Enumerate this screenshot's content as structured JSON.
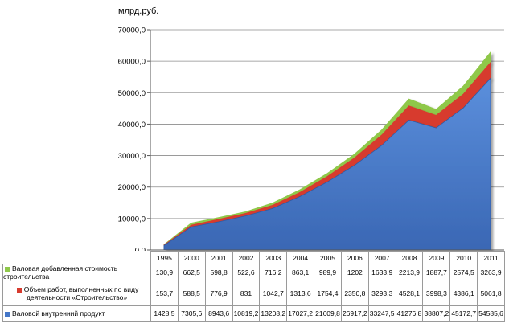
{
  "chart_data": {
    "type": "area",
    "stacked": true,
    "ylabel": "млрд.руб.",
    "ylim": [
      0,
      70000
    ],
    "yticks": [
      "0,0",
      "10000,0",
      "20000,0",
      "30000,0",
      "40000,0",
      "50000,0",
      "60000,0",
      "70000,0"
    ],
    "categories": [
      "1995",
      "2000",
      "2001",
      "2002",
      "2003",
      "2004",
      "2005",
      "2006",
      "2007",
      "2008",
      "2009",
      "2010",
      "2011"
    ],
    "series": [
      {
        "name": "Валовой внутренний продукт",
        "color": "#4577c8",
        "values": [
          1428.5,
          7305.6,
          8943.6,
          10819.2,
          13208.2,
          17027.2,
          21609.8,
          26917.2,
          33247.5,
          41276.8,
          38807.2,
          45172.7,
          54585.6
        ],
        "labels": [
          "1428,5",
          "7305,6",
          "8943,6",
          "10819,2",
          "13208,2",
          "17027,2",
          "21609,8",
          "26917,2",
          "33247,5",
          "41276,8",
          "38807,2",
          "45172,7",
          "54585,6"
        ]
      },
      {
        "name": "Объем работ, выполненных по виду деятельности «Строительство»",
        "color": "#d73b2e",
        "values": [
          153.7,
          588.5,
          776.9,
          831,
          1042.7,
          1313.6,
          1754.4,
          2350.8,
          3293.3,
          4528.1,
          3998.3,
          4386.1,
          5061.8
        ],
        "labels": [
          "153,7",
          "588,5",
          "776,9",
          "831",
          "1042,7",
          "1313,6",
          "1754,4",
          "2350,8",
          "3293,3",
          "4528,1",
          "3998,3",
          "4386,1",
          "5061,8"
        ]
      },
      {
        "name": "Валовая добавленная стоимость строительства",
        "color": "#8fc84a",
        "values": [
          130.9,
          662.5,
          598.8,
          522.6,
          716.2,
          863.1,
          989.9,
          1202,
          1633.9,
          2213.9,
          1887.7,
          2574.5,
          3263.9
        ],
        "labels": [
          "130,9",
          "662,5",
          "598,8",
          "522,6",
          "716,2",
          "863,1",
          "989,9",
          "1202",
          "1633,9",
          "2213,9",
          "1887,7",
          "2574,5",
          "3263,9"
        ]
      }
    ]
  }
}
